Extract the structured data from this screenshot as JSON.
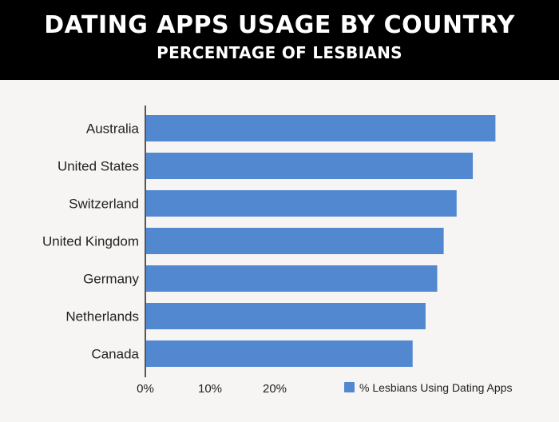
{
  "header": {
    "title": "DATING APPS USAGE BY COUNTRY",
    "subtitle": "PERCENTAGE OF LESBIANS"
  },
  "chart_data": {
    "type": "bar",
    "orientation": "horizontal",
    "categories": [
      "Australia",
      "United States",
      "Switzerland",
      "United Kingdom",
      "Germany",
      "Netherlands",
      "Canada"
    ],
    "series": [
      {
        "name": "% Lesbians Using Dating Apps",
        "values": [
          54,
          50.5,
          48,
          46,
          45,
          43.2,
          41.2
        ],
        "color": "#5188d0"
      }
    ],
    "x_ticks": [
      "0%",
      "10%",
      "20%"
    ],
    "x_tick_values": [
      0,
      10,
      20
    ],
    "xlim": [
      0,
      58
    ],
    "grid": false,
    "legend_position": "bottom-right"
  }
}
